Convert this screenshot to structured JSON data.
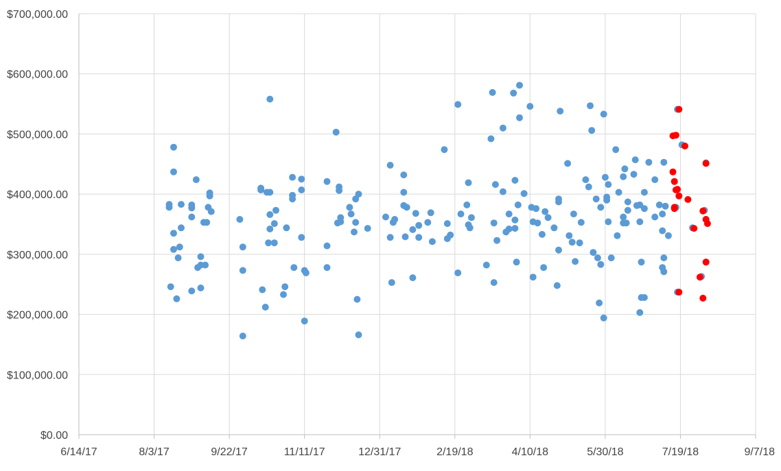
{
  "colors": {
    "background": "#ffffff",
    "grid": "#d9d9d9",
    "axis": "#bfbfbf",
    "tick_text": "#444444",
    "series_blue": "#5b9bd5",
    "series_red": "#ff0000"
  },
  "chart_data": {
    "type": "scatter",
    "title": "",
    "xlabel": "",
    "ylabel": "",
    "x_axis": {
      "type": "date",
      "min": "2017-06-14",
      "max": "2018-09-07",
      "tick_dates": [
        "2017-06-14",
        "2017-08-03",
        "2017-09-22",
        "2017-11-11",
        "2017-12-31",
        "2018-02-19",
        "2018-04-10",
        "2018-05-30",
        "2018-07-19",
        "2018-09-07"
      ],
      "tick_labels": [
        "6/14/17",
        "8/3/17",
        "9/22/17",
        "11/11/17",
        "12/31/17",
        "2/19/18",
        "4/10/18",
        "5/30/18",
        "7/19/18",
        "9/7/18"
      ]
    },
    "y_axis": {
      "min": 0,
      "max": 700000,
      "step": 100000,
      "tick_labels": [
        "$0.00",
        "$100,000.00",
        "$200,000.00",
        "$300,000.00",
        "$400,000.00",
        "$500,000.00",
        "$600,000.00",
        "$700,000.00"
      ]
    },
    "grid": true,
    "legend": "none",
    "series": [
      {
        "color": "#5b9bd5",
        "points": [
          [
            "2017-08-13",
            383000
          ],
          [
            "2017-08-13",
            378000
          ],
          [
            "2017-08-14",
            246000
          ],
          [
            "2017-08-16",
            478000
          ],
          [
            "2017-08-16",
            437000
          ],
          [
            "2017-08-16",
            335000
          ],
          [
            "2017-08-16",
            308000
          ],
          [
            "2017-08-18",
            226000
          ],
          [
            "2017-08-19",
            294000
          ],
          [
            "2017-08-20",
            312000
          ],
          [
            "2017-08-21",
            383000
          ],
          [
            "2017-08-21",
            344000
          ],
          [
            "2017-08-28",
            239000
          ],
          [
            "2017-08-28",
            382000
          ],
          [
            "2017-08-28",
            377000
          ],
          [
            "2017-08-28",
            362000
          ],
          [
            "2017-08-31",
            424000
          ],
          [
            "2017-09-01",
            278000
          ],
          [
            "2017-09-03",
            244000
          ],
          [
            "2017-09-03",
            296000
          ],
          [
            "2017-09-03",
            282000
          ],
          [
            "2017-09-05",
            353000
          ],
          [
            "2017-09-06",
            282000
          ],
          [
            "2017-09-07",
            353000
          ],
          [
            "2017-09-08",
            378000
          ],
          [
            "2017-09-09",
            402000
          ],
          [
            "2017-09-09",
            397000
          ],
          [
            "2017-09-10",
            371000
          ],
          [
            "2017-09-29",
            358000
          ],
          [
            "2017-10-01",
            312000
          ],
          [
            "2017-10-01",
            273000
          ],
          [
            "2017-10-01",
            164000
          ],
          [
            "2017-10-13",
            410000
          ],
          [
            "2017-10-13",
            407000
          ],
          [
            "2017-10-14",
            241000
          ],
          [
            "2017-10-16",
            212000
          ],
          [
            "2017-10-17",
            403000
          ],
          [
            "2017-10-18",
            319000
          ],
          [
            "2017-10-19",
            342000
          ],
          [
            "2017-10-19",
            403000
          ],
          [
            "2017-10-19",
            366000
          ],
          [
            "2017-10-19",
            558000
          ],
          [
            "2017-10-22",
            351000
          ],
          [
            "2017-10-22",
            319000
          ],
          [
            "2017-10-23",
            373000
          ],
          [
            "2017-10-28",
            233000
          ],
          [
            "2017-10-29",
            246000
          ],
          [
            "2017-10-30",
            344000
          ],
          [
            "2017-11-03",
            428000
          ],
          [
            "2017-11-03",
            398000
          ],
          [
            "2017-11-03",
            392000
          ],
          [
            "2017-11-04",
            278000
          ],
          [
            "2017-11-09",
            425000
          ],
          [
            "2017-11-09",
            407000
          ],
          [
            "2017-11-09",
            328000
          ],
          [
            "2017-11-11",
            189000
          ],
          [
            "2017-11-11",
            273000
          ],
          [
            "2017-11-12",
            269000
          ],
          [
            "2017-11-26",
            421000
          ],
          [
            "2017-11-26",
            314000
          ],
          [
            "2017-11-26",
            278000
          ],
          [
            "2017-12-02",
            503000
          ],
          [
            "2017-12-03",
            352000
          ],
          [
            "2017-12-04",
            406000
          ],
          [
            "2017-12-04",
            412000
          ],
          [
            "2017-12-05",
            361000
          ],
          [
            "2017-12-05",
            354000
          ],
          [
            "2017-12-11",
            378000
          ],
          [
            "2017-12-12",
            367000
          ],
          [
            "2017-12-14",
            337000
          ],
          [
            "2017-12-15",
            392000
          ],
          [
            "2017-12-15",
            353000
          ],
          [
            "2017-12-16",
            225000
          ],
          [
            "2017-12-17",
            166000
          ],
          [
            "2017-12-17",
            400000
          ],
          [
            "2017-12-23",
            343000
          ],
          [
            "2018-01-04",
            362000
          ],
          [
            "2018-01-07",
            448000
          ],
          [
            "2018-01-07",
            328000
          ],
          [
            "2018-01-08",
            253000
          ],
          [
            "2018-01-09",
            353000
          ],
          [
            "2018-01-10",
            358000
          ],
          [
            "2018-01-16",
            432000
          ],
          [
            "2018-01-16",
            403000
          ],
          [
            "2018-01-16",
            381000
          ],
          [
            "2018-01-17",
            329000
          ],
          [
            "2018-01-18",
            378000
          ],
          [
            "2018-01-22",
            261000
          ],
          [
            "2018-01-22",
            341000
          ],
          [
            "2018-01-24",
            368000
          ],
          [
            "2018-01-26",
            348000
          ],
          [
            "2018-01-26",
            328000
          ],
          [
            "2018-02-01",
            353000
          ],
          [
            "2018-02-03",
            369000
          ],
          [
            "2018-02-04",
            321000
          ],
          [
            "2018-02-12",
            474000
          ],
          [
            "2018-02-14",
            351000
          ],
          [
            "2018-02-14",
            326000
          ],
          [
            "2018-02-16",
            332000
          ],
          [
            "2018-02-21",
            269000
          ],
          [
            "2018-02-21",
            549000
          ],
          [
            "2018-02-23",
            367000
          ],
          [
            "2018-02-27",
            382000
          ],
          [
            "2018-02-28",
            419000
          ],
          [
            "2018-02-28",
            349000
          ],
          [
            "2018-03-01",
            344000
          ],
          [
            "2018-03-02",
            361000
          ],
          [
            "2018-03-12",
            282000
          ],
          [
            "2018-03-15",
            492000
          ],
          [
            "2018-03-16",
            569000
          ],
          [
            "2018-03-17",
            352000
          ],
          [
            "2018-03-17",
            253000
          ],
          [
            "2018-03-18",
            416000
          ],
          [
            "2018-03-19",
            323000
          ],
          [
            "2018-03-23",
            510000
          ],
          [
            "2018-03-23",
            404000
          ],
          [
            "2018-03-25",
            337000
          ],
          [
            "2018-03-27",
            367000
          ],
          [
            "2018-03-27",
            342000
          ],
          [
            "2018-03-30",
            568000
          ],
          [
            "2018-03-31",
            423000
          ],
          [
            "2018-03-31",
            343000
          ],
          [
            "2018-03-31",
            357000
          ],
          [
            "2018-04-01",
            287000
          ],
          [
            "2018-04-02",
            382000
          ],
          [
            "2018-04-03",
            527000
          ],
          [
            "2018-04-03",
            581000
          ],
          [
            "2018-04-06",
            401000
          ],
          [
            "2018-04-10",
            546000
          ],
          [
            "2018-04-11",
            378000
          ],
          [
            "2018-04-12",
            354000
          ],
          [
            "2018-04-12",
            262000
          ],
          [
            "2018-04-14",
            376000
          ],
          [
            "2018-04-15",
            352000
          ],
          [
            "2018-04-18",
            333000
          ],
          [
            "2018-04-19",
            278000
          ],
          [
            "2018-04-20",
            371000
          ],
          [
            "2018-04-22",
            361000
          ],
          [
            "2018-04-26",
            344000
          ],
          [
            "2018-04-28",
            248000
          ],
          [
            "2018-04-29",
            307000
          ],
          [
            "2018-04-29",
            392000
          ],
          [
            "2018-04-29",
            387000
          ],
          [
            "2018-04-30",
            538000
          ],
          [
            "2018-05-05",
            451000
          ],
          [
            "2018-05-06",
            331000
          ],
          [
            "2018-05-08",
            320000
          ],
          [
            "2018-05-09",
            367000
          ],
          [
            "2018-05-10",
            288000
          ],
          [
            "2018-05-13",
            319000
          ],
          [
            "2018-05-14",
            353000
          ],
          [
            "2018-05-17",
            424000
          ],
          [
            "2018-05-19",
            412000
          ],
          [
            "2018-05-20",
            547000
          ],
          [
            "2018-05-21",
            506000
          ],
          [
            "2018-05-22",
            303000
          ],
          [
            "2018-05-24",
            392000
          ],
          [
            "2018-05-25",
            294000
          ],
          [
            "2018-05-26",
            219000
          ],
          [
            "2018-05-27",
            283000
          ],
          [
            "2018-05-27",
            378000
          ],
          [
            "2018-05-29",
            533000
          ],
          [
            "2018-05-29",
            194000
          ],
          [
            "2018-05-30",
            428000
          ],
          [
            "2018-05-31",
            395000
          ],
          [
            "2018-05-31",
            390000
          ],
          [
            "2018-06-01",
            354000
          ],
          [
            "2018-06-01",
            416000
          ],
          [
            "2018-06-03",
            294000
          ],
          [
            "2018-06-06",
            474000
          ],
          [
            "2018-06-07",
            331000
          ],
          [
            "2018-06-08",
            403000
          ],
          [
            "2018-06-11",
            352000
          ],
          [
            "2018-06-11",
            429000
          ],
          [
            "2018-06-11",
            362000
          ],
          [
            "2018-06-12",
            442000
          ],
          [
            "2018-06-13",
            352000
          ],
          [
            "2018-06-14",
            373000
          ],
          [
            "2018-06-14",
            387000
          ],
          [
            "2018-06-18",
            433000
          ],
          [
            "2018-06-19",
            457000
          ],
          [
            "2018-06-20",
            381000
          ],
          [
            "2018-06-22",
            203000
          ],
          [
            "2018-06-22",
            382000
          ],
          [
            "2018-06-22",
            354000
          ],
          [
            "2018-06-23",
            287000
          ],
          [
            "2018-06-23",
            228000
          ],
          [
            "2018-06-25",
            376000
          ],
          [
            "2018-06-25",
            403000
          ],
          [
            "2018-06-25",
            228000
          ],
          [
            "2018-06-28",
            453000
          ],
          [
            "2018-07-02",
            424000
          ],
          [
            "2018-07-02",
            362000
          ],
          [
            "2018-07-05",
            382000
          ],
          [
            "2018-07-07",
            278000
          ],
          [
            "2018-07-07",
            339000
          ],
          [
            "2018-07-07",
            367000
          ],
          [
            "2018-07-08",
            453000
          ],
          [
            "2018-07-08",
            294000
          ],
          [
            "2018-07-08",
            271000
          ],
          [
            "2018-07-09",
            380000
          ],
          [
            "2018-07-11",
            331000
          ],
          [
            "2018-07-15",
            421000
          ],
          [
            "2018-07-16",
            378000
          ],
          [
            "2018-07-17",
            237000
          ],
          [
            "2018-07-17",
            541000
          ],
          [
            "2018-07-20",
            482000
          ],
          [
            "2018-07-27",
            344000
          ],
          [
            "2018-08-02",
            263000
          ],
          [
            "2018-08-04",
            373000
          ],
          [
            "2018-08-05",
            452000
          ],
          [
            "2018-08-05",
            287000
          ],
          [
            "2018-08-05",
            358000
          ]
        ]
      },
      {
        "color": "#ff0000",
        "points": [
          [
            "2018-07-14",
            437000
          ],
          [
            "2018-07-14",
            497000
          ],
          [
            "2018-07-15",
            421000
          ],
          [
            "2018-07-15",
            378000
          ],
          [
            "2018-07-15",
            376000
          ],
          [
            "2018-07-16",
            407000
          ],
          [
            "2018-07-16",
            498000
          ],
          [
            "2018-07-17",
            408000
          ],
          [
            "2018-07-18",
            541000
          ],
          [
            "2018-07-18",
            397000
          ],
          [
            "2018-07-18",
            237000
          ],
          [
            "2018-07-22",
            480000
          ],
          [
            "2018-07-24",
            391000
          ],
          [
            "2018-07-28",
            343000
          ],
          [
            "2018-08-01",
            262000
          ],
          [
            "2018-08-03",
            372000
          ],
          [
            "2018-08-03",
            227000
          ],
          [
            "2018-08-05",
            451000
          ],
          [
            "2018-08-05",
            358000
          ],
          [
            "2018-08-05",
            287000
          ],
          [
            "2018-08-06",
            351000
          ]
        ]
      }
    ]
  }
}
